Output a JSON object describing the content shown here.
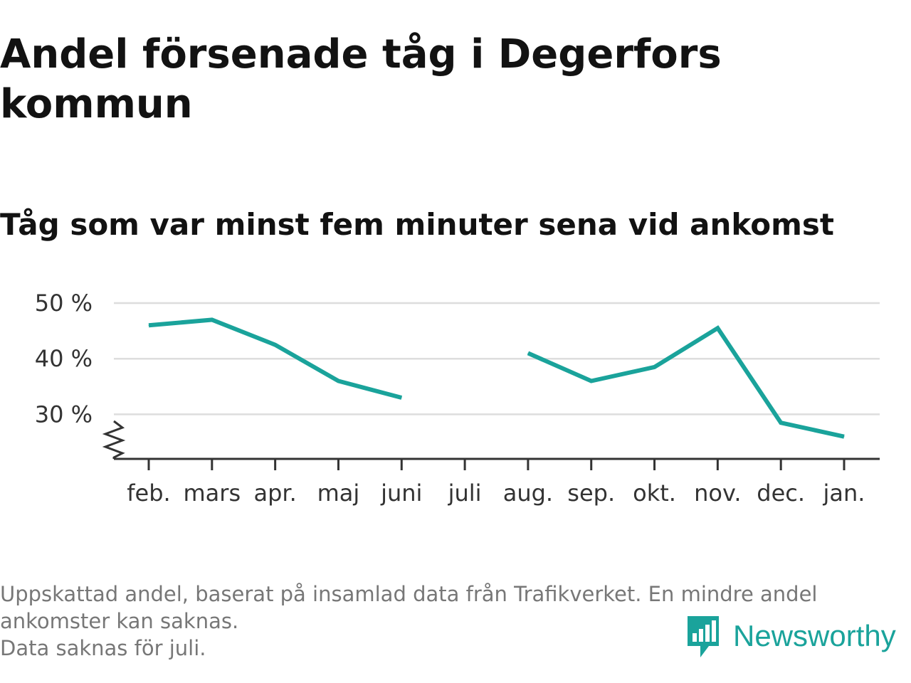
{
  "title": "Andel försenade tåg i Degerfors kommun",
  "subtitle": "Tåg som var minst fem minuter sena vid ankomst",
  "chart_data": {
    "type": "line",
    "categories": [
      "feb.",
      "mars",
      "apr.",
      "maj",
      "juni",
      "juli",
      "aug.",
      "sep.",
      "okt.",
      "nov.",
      "dec.",
      "jan."
    ],
    "series": [
      {
        "values": [
          46,
          47,
          42.5,
          36,
          33,
          null,
          41,
          36,
          38.5,
          45.5,
          28.5,
          26
        ]
      }
    ],
    "y_ticks": [
      30,
      40,
      50
    ],
    "y_tick_labels": [
      "30 %",
      "40 %",
      "50 %"
    ],
    "ylim": [
      22,
      50
    ],
    "y_axis_broken": true,
    "grid": true,
    "line_color": "#1aa39b"
  },
  "footnote": {
    "lines": [
      "Uppskattad andel, baserat på insamlad data från Trafikverket. En mindre andel",
      "ankomster kan saknas.",
      "Data saknas för juli."
    ]
  },
  "brand": {
    "name": "Newsworthy",
    "icon": "newsworthy-logo-icon",
    "color": "#1aa39b"
  }
}
